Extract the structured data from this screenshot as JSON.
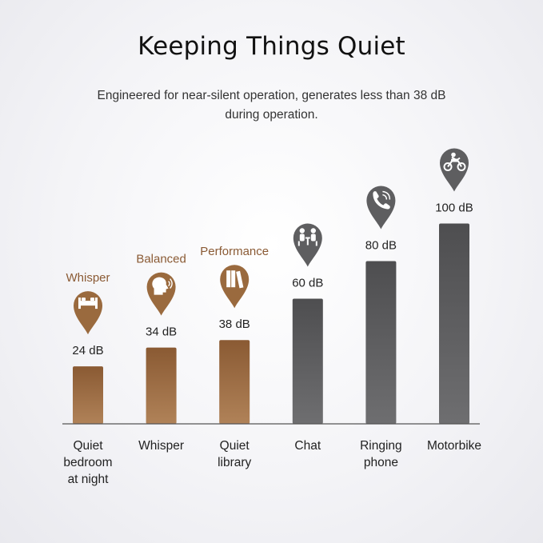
{
  "header": {
    "title": "Keeping Things Quiet",
    "subtitle": "Engineered for near-silent operation, generates less than 38 dB during operation."
  },
  "colors": {
    "quiet_bar": "#9a6a3e",
    "loud_bar": "#5e5e60",
    "mode_label": "#8a5a34",
    "baseline": "#555555"
  },
  "chart_data": {
    "type": "bar",
    "categories": [
      "Quiet bedroom at night",
      "Whisper",
      "Quiet library",
      "Chat",
      "Ringing phone",
      "Motorbike"
    ],
    "category_lines": [
      [
        "Quiet",
        "bedroom",
        "at night"
      ],
      [
        "Whisper"
      ],
      [
        "Quiet",
        "library"
      ],
      [
        "Chat"
      ],
      [
        "Ringing",
        "phone"
      ],
      [
        "Motorbike"
      ]
    ],
    "values": [
      24,
      34,
      38,
      60,
      80,
      100
    ],
    "value_labels": [
      "24 dB",
      "34 dB",
      "38 dB",
      "60 dB",
      "80 dB",
      "100 dB"
    ],
    "mode_labels": [
      "Whisper",
      "Balanced",
      "Performance",
      "",
      "",
      ""
    ],
    "icons": [
      "bed-icon",
      "speaking-head-icon",
      "books-icon",
      "chat-people-icon",
      "ringing-phone-icon",
      "motorbike-icon"
    ],
    "bar_group": [
      "quiet",
      "quiet",
      "quiet",
      "loud",
      "loud",
      "loud"
    ],
    "ylim": [
      0,
      100
    ],
    "grid": false
  }
}
